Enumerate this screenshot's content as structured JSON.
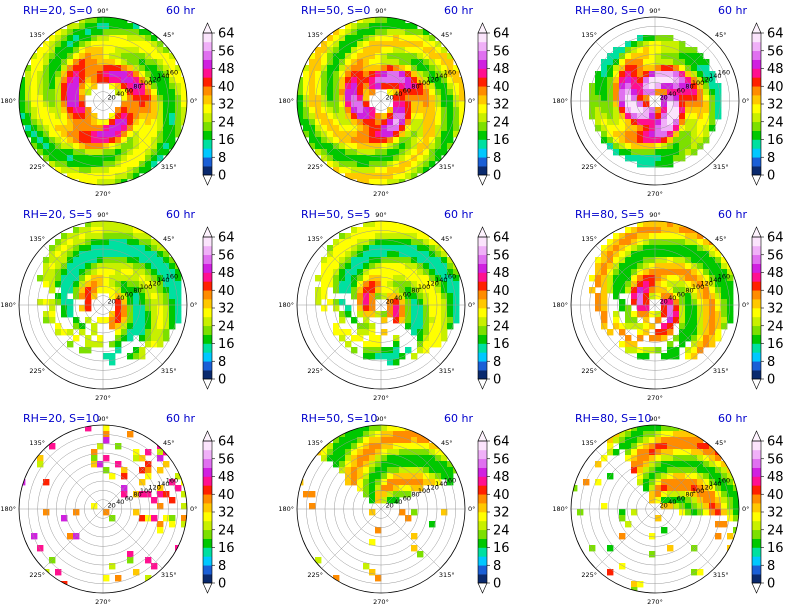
{
  "colors": {
    "title": "#0000cc",
    "grid": "#9a9a9a",
    "outline": "#000000"
  },
  "colormap": [
    "#0a2a6e",
    "#1a5fd6",
    "#00c8ff",
    "#00e0a0",
    "#00c800",
    "#7ce000",
    "#c8f000",
    "#ffff00",
    "#ffc800",
    "#ff8c00",
    "#ff2000",
    "#ff1090",
    "#d020e0",
    "#e070f0",
    "#f0b0f8",
    "#fbe4fc"
  ],
  "chart_data": [
    {
      "type": "heatmap",
      "title_left": "RH=20, S=0",
      "title_right": "60 hr",
      "rh": 20,
      "s": 0,
      "pattern": "spiral-ring",
      "eye_radius": 0.2,
      "coverage": 0.92,
      "intensity": 0.55
    },
    {
      "type": "heatmap",
      "title_left": "RH=50, S=0",
      "title_right": "60 hr",
      "rh": 50,
      "s": 0,
      "pattern": "spiral-ring",
      "eye_radius": 0.12,
      "coverage": 0.98,
      "intensity": 0.62
    },
    {
      "type": "heatmap",
      "title_left": "RH=80, S=0",
      "title_right": "60 hr",
      "rh": 80,
      "s": 0,
      "pattern": "compact-core",
      "eye_radius": 0.07,
      "coverage": 0.7,
      "intensity": 0.8
    },
    {
      "type": "heatmap",
      "title_left": "RH=20, S=5",
      "title_right": "60 hr",
      "rh": 20,
      "s": 5,
      "pattern": "sheared-spiral",
      "eye_radius": 0.12,
      "coverage": 0.72,
      "intensity": 0.55
    },
    {
      "type": "heatmap",
      "title_left": "RH=50, S=5",
      "title_right": "60 hr",
      "rh": 50,
      "s": 5,
      "pattern": "sheared-spiral",
      "eye_radius": 0.08,
      "coverage": 0.85,
      "intensity": 0.6
    },
    {
      "type": "heatmap",
      "title_left": "RH=80, S=5",
      "title_right": "60 hr",
      "rh": 80,
      "s": 5,
      "pattern": "sheared-spiral",
      "eye_radius": 0.06,
      "coverage": 0.82,
      "intensity": 0.72
    },
    {
      "type": "heatmap",
      "title_left": "RH=20, S=10",
      "title_right": "60 hr",
      "rh": 20,
      "s": 10,
      "pattern": "scattered",
      "eye_radius": 0.0,
      "coverage": 0.22,
      "intensity": 0.6
    },
    {
      "type": "heatmap",
      "title_left": "RH=50, S=10",
      "title_right": "60 hr",
      "rh": 50,
      "s": 10,
      "pattern": "north-sector",
      "eye_radius": 0.0,
      "coverage": 0.4,
      "intensity": 0.65
    },
    {
      "type": "heatmap",
      "title_left": "RH=80, S=10",
      "title_right": "60 hr",
      "rh": 80,
      "s": 10,
      "pattern": "northeast-sector",
      "eye_radius": 0.0,
      "coverage": 0.45,
      "intensity": 0.7
    }
  ],
  "polar_axes": {
    "angle_labels": [
      "90°",
      "45°",
      "0°",
      "315°",
      "270°",
      "225°",
      "180°",
      "135°"
    ],
    "angle_degrees": [
      90,
      45,
      0,
      315,
      270,
      225,
      180,
      135
    ],
    "radial_labels": [
      "20",
      "40",
      "60",
      "80",
      "100",
      "120",
      "140",
      "160"
    ],
    "radial_values": [
      20,
      40,
      60,
      80,
      100,
      120,
      140,
      160
    ],
    "radial_max": 180,
    "radial_label_angle_deg": 22.5
  },
  "colorbar": {
    "tick_labels": [
      "0",
      "8",
      "16",
      "24",
      "32",
      "40",
      "48",
      "56",
      "64"
    ],
    "tick_values": [
      0,
      8,
      16,
      24,
      32,
      40,
      48,
      56,
      64
    ],
    "min": 0,
    "max": 64,
    "extend": "both"
  }
}
